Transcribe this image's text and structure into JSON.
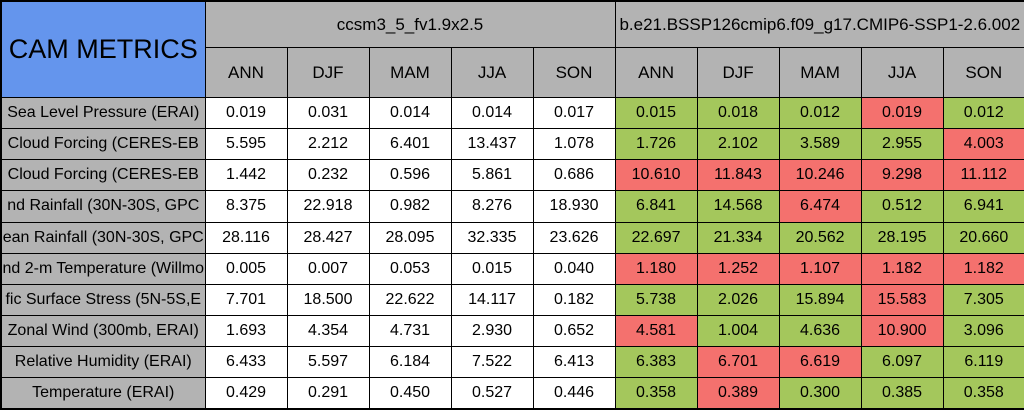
{
  "title": "CAM METRICS",
  "colors": {
    "header_blue": "#6495ED",
    "header_gray": "#B3B3B3",
    "better_green": "#A4C75C",
    "worse_red": "#F4716E",
    "grid_black": "#000000",
    "cell_white": "#FFFFFF"
  },
  "chart_data": {
    "type": "table",
    "title": "CAM METRICS",
    "column_groups": [
      "ccsm3_5_fv1.9x2.5",
      "b.e21.BSSP126cmip6.f09_g17.CMIP6-SSP1-2.6.002"
    ],
    "seasons": [
      "ANN",
      "DJF",
      "MAM",
      "JJA",
      "SON"
    ],
    "rows": [
      {
        "label": "Sea Level Pressure (ERAI)",
        "model1": [
          "0.019",
          "0.031",
          "0.014",
          "0.014",
          "0.017"
        ],
        "model2": [
          "0.015",
          "0.018",
          "0.012",
          "0.019",
          "0.012"
        ],
        "model2_flags": [
          "green",
          "green",
          "green",
          "red",
          "green"
        ]
      },
      {
        "label": "Cloud Forcing (CERES-EB",
        "model1": [
          "5.595",
          "2.212",
          "6.401",
          "13.437",
          "1.078"
        ],
        "model2": [
          "1.726",
          "2.102",
          "3.589",
          "2.955",
          "4.003"
        ],
        "model2_flags": [
          "green",
          "green",
          "green",
          "green",
          "red"
        ]
      },
      {
        "label": "Cloud Forcing (CERES-EB",
        "model1": [
          "1.442",
          "0.232",
          "0.596",
          "5.861",
          "0.686"
        ],
        "model2": [
          "10.610",
          "11.843",
          "10.246",
          "9.298",
          "11.112"
        ],
        "model2_flags": [
          "red",
          "red",
          "red",
          "red",
          "red"
        ]
      },
      {
        "label": "nd Rainfall (30N-30S, GPC",
        "model1": [
          "8.375",
          "22.918",
          "0.982",
          "8.276",
          "18.930"
        ],
        "model2": [
          "6.841",
          "14.568",
          "6.474",
          "0.512",
          "6.941"
        ],
        "model2_flags": [
          "green",
          "green",
          "red",
          "green",
          "green"
        ]
      },
      {
        "label": "ean Rainfall (30N-30S, GPC",
        "model1": [
          "28.116",
          "28.427",
          "28.095",
          "32.335",
          "23.626"
        ],
        "model2": [
          "22.697",
          "21.334",
          "20.562",
          "28.195",
          "20.660"
        ],
        "model2_flags": [
          "green",
          "green",
          "green",
          "green",
          "green"
        ]
      },
      {
        "label": "nd 2-m Temperature (Willmo",
        "model1": [
          "0.005",
          "0.007",
          "0.053",
          "0.015",
          "0.040"
        ],
        "model2": [
          "1.180",
          "1.252",
          "1.107",
          "1.182",
          "1.182"
        ],
        "model2_flags": [
          "red",
          "red",
          "red",
          "red",
          "red"
        ]
      },
      {
        "label": "fic Surface Stress (5N-5S,E",
        "model1": [
          "7.701",
          "18.500",
          "22.622",
          "14.117",
          "0.182"
        ],
        "model2": [
          "5.738",
          "2.026",
          "15.894",
          "15.583",
          "7.305"
        ],
        "model2_flags": [
          "green",
          "green",
          "green",
          "red",
          "green"
        ]
      },
      {
        "label": "Zonal Wind (300mb, ERAI)",
        "model1": [
          "1.693",
          "4.354",
          "4.731",
          "2.930",
          "0.652"
        ],
        "model2": [
          "4.581",
          "1.004",
          "4.636",
          "10.900",
          "3.096"
        ],
        "model2_flags": [
          "red",
          "green",
          "green",
          "red",
          "green"
        ]
      },
      {
        "label": "Relative Humidity (ERAI)",
        "model1": [
          "6.433",
          "5.597",
          "6.184",
          "7.522",
          "6.413"
        ],
        "model2": [
          "6.383",
          "6.701",
          "6.619",
          "6.097",
          "6.119"
        ],
        "model2_flags": [
          "green",
          "red",
          "red",
          "green",
          "green"
        ]
      },
      {
        "label": "Temperature (ERAI)",
        "model1": [
          "0.429",
          "0.291",
          "0.450",
          "0.527",
          "0.446"
        ],
        "model2": [
          "0.358",
          "0.389",
          "0.300",
          "0.385",
          "0.358"
        ],
        "model2_flags": [
          "green",
          "red",
          "green",
          "green",
          "green"
        ]
      }
    ]
  }
}
